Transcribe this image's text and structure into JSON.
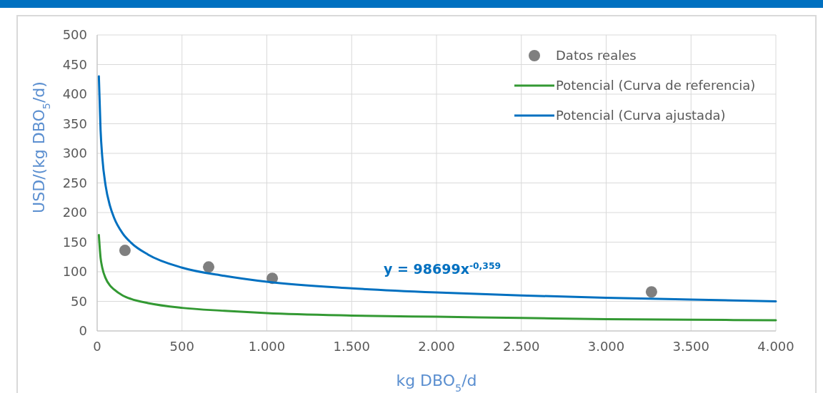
{
  "chart_data": {
    "type": "line",
    "xlabel": "kg DBO$_{5}$/d",
    "ylabel": "USD/(kg DBO$_{5}$/d)",
    "xlim": [
      0,
      4000
    ],
    "xticks": [
      0,
      500,
      {
        "value": 1000,
        "label": "1.000"
      },
      {
        "value": 1500,
        "label": "1.500"
      },
      {
        "value": 2000,
        "label": "2.000"
      },
      {
        "value": 2500,
        "label": "2.500"
      },
      {
        "value": 3000,
        "label": "3.000"
      },
      {
        "value": 3500,
        "label": "3.500"
      },
      {
        "value": 4000,
        "label": "4.000"
      }
    ],
    "ylim": [
      0,
      500
    ],
    "yticks": [
      0,
      50,
      100,
      150,
      200,
      250,
      300,
      350,
      400,
      450,
      500
    ],
    "grid": true,
    "legend": "top right",
    "series": [
      {
        "name": "Datos reales",
        "type": "scatter",
        "marker": "circle",
        "color": "#7f7f7f",
        "x": [
          164,
          657,
          1032,
          3267
        ],
        "values": [
          136,
          108,
          89,
          66
        ]
      },
      {
        "name": "Potencial (Curva de referencia)",
        "color": "#339933",
        "x": [
          10,
          20,
          30,
          50,
          75,
          100,
          150,
          200,
          300,
          500,
          750,
          1000,
          1500,
          2000,
          2500,
          3000,
          3500,
          4000
        ],
        "values": [
          162,
          124,
          107,
          89,
          77,
          70,
          60,
          54,
          47,
          39,
          34,
          30,
          26,
          24,
          22,
          20,
          19,
          18
        ]
      },
      {
        "name": "Potencial (Curva ajustada)",
        "color": "#0070c0",
        "x": [
          10,
          20,
          30,
          50,
          75,
          100,
          150,
          200,
          300,
          500,
          750,
          1000,
          1500,
          2000,
          2500,
          3000,
          3500,
          4000
        ],
        "values": [
          430,
          340,
          294,
          245,
          212,
          191,
          165,
          149,
          129,
          107,
          93,
          83,
          72,
          65,
          60,
          56,
          53,
          50
        ]
      }
    ],
    "annotations": [
      "y = 98699x$^{-0,359}$"
    ]
  }
}
